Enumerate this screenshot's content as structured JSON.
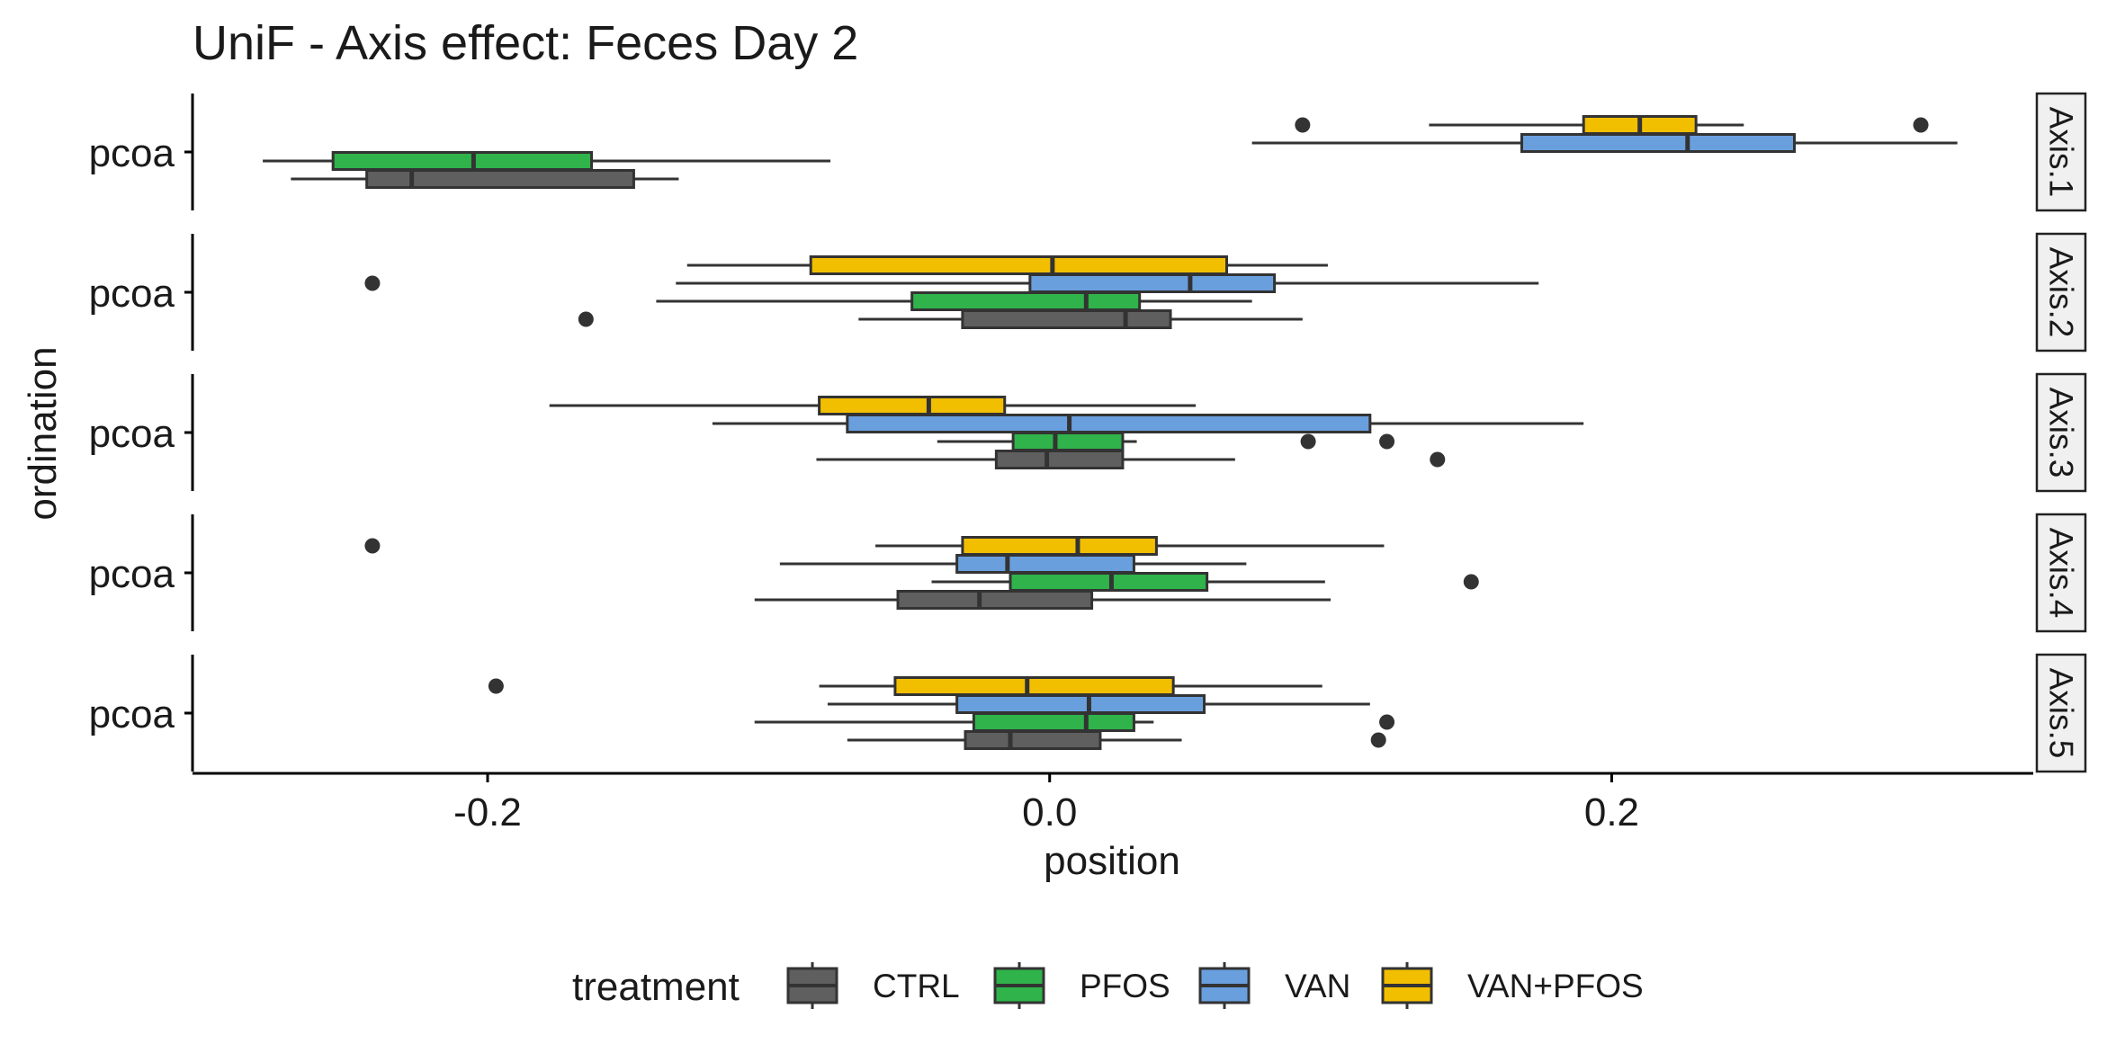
{
  "chart_data": {
    "type": "boxplot",
    "orientation": "horizontal",
    "title": "UniF - Axis effect: Feces Day 2",
    "xlabel": "position",
    "ylabel": "ordination",
    "xlim": [
      -0.305,
      0.35
    ],
    "xticks": [
      {
        "value": -0.2,
        "label": "-0.2"
      },
      {
        "value": 0.0,
        "label": "0.0"
      },
      {
        "value": 0.2,
        "label": "0.2"
      }
    ],
    "grid": false,
    "legend": {
      "title": "treatment",
      "position": "bottom"
    },
    "series": [
      {
        "name": "CTRL",
        "color": "#5f5f5f"
      },
      {
        "name": "PFOS",
        "color": "#2fb34a"
      },
      {
        "name": "VAN",
        "color": "#6a9fde"
      },
      {
        "name": "VAN+PFOS",
        "color": "#f2bf00"
      }
    ],
    "facets": [
      {
        "label": "Axis.1",
        "category": "pcoa",
        "boxes": [
          {
            "group": "CTRL",
            "whislo": -0.27,
            "q1": -0.243,
            "med": -0.227,
            "q3": -0.148,
            "whishi": -0.132,
            "outliers": []
          },
          {
            "group": "PFOS",
            "whislo": -0.28,
            "q1": -0.255,
            "med": -0.205,
            "q3": -0.163,
            "whishi": -0.078,
            "outliers": []
          },
          {
            "group": "VAN",
            "whislo": 0.072,
            "q1": 0.168,
            "med": 0.227,
            "q3": 0.265,
            "whishi": 0.323,
            "outliers": []
          },
          {
            "group": "VAN+PFOS",
            "whislo": 0.135,
            "q1": 0.19,
            "med": 0.21,
            "q3": 0.23,
            "whishi": 0.247,
            "outliers": [
              0.09,
              0.31
            ]
          }
        ]
      },
      {
        "label": "Axis.2",
        "category": "pcoa",
        "boxes": [
          {
            "group": "CTRL",
            "whislo": -0.068,
            "q1": -0.031,
            "med": 0.027,
            "q3": 0.043,
            "whishi": 0.09,
            "outliers": [
              -0.165
            ]
          },
          {
            "group": "PFOS",
            "whislo": -0.14,
            "q1": -0.049,
            "med": 0.013,
            "q3": 0.032,
            "whishi": 0.072,
            "outliers": []
          },
          {
            "group": "VAN",
            "whislo": -0.133,
            "q1": -0.007,
            "med": 0.05,
            "q3": 0.08,
            "whishi": 0.174,
            "outliers": [
              -0.241
            ]
          },
          {
            "group": "VAN+PFOS",
            "whislo": -0.129,
            "q1": -0.085,
            "med": 0.001,
            "q3": 0.063,
            "whishi": 0.099,
            "outliers": []
          }
        ]
      },
      {
        "label": "Axis.3",
        "category": "pcoa",
        "boxes": [
          {
            "group": "CTRL",
            "whislo": -0.083,
            "q1": -0.019,
            "med": -0.001,
            "q3": 0.026,
            "whishi": 0.066,
            "outliers": [
              0.138
            ]
          },
          {
            "group": "PFOS",
            "whislo": -0.04,
            "q1": -0.013,
            "med": 0.002,
            "q3": 0.026,
            "whishi": 0.031,
            "outliers": [
              0.092,
              0.12
            ]
          },
          {
            "group": "VAN",
            "whislo": -0.12,
            "q1": -0.072,
            "med": 0.007,
            "q3": 0.114,
            "whishi": 0.19,
            "outliers": []
          },
          {
            "group": "VAN+PFOS",
            "whislo": -0.178,
            "q1": -0.082,
            "med": -0.043,
            "q3": -0.016,
            "whishi": 0.052,
            "outliers": []
          }
        ]
      },
      {
        "label": "Axis.4",
        "category": "pcoa",
        "boxes": [
          {
            "group": "CTRL",
            "whislo": -0.105,
            "q1": -0.054,
            "med": -0.025,
            "q3": 0.015,
            "whishi": 0.1,
            "outliers": []
          },
          {
            "group": "PFOS",
            "whislo": -0.042,
            "q1": -0.014,
            "med": 0.022,
            "q3": 0.056,
            "whishi": 0.098,
            "outliers": [
              0.15
            ]
          },
          {
            "group": "VAN",
            "whislo": -0.096,
            "q1": -0.033,
            "med": -0.015,
            "q3": 0.03,
            "whishi": 0.07,
            "outliers": []
          },
          {
            "group": "VAN+PFOS",
            "whislo": -0.062,
            "q1": -0.031,
            "med": 0.01,
            "q3": 0.038,
            "whishi": 0.119,
            "outliers": [
              -0.241
            ]
          }
        ]
      },
      {
        "label": "Axis.5",
        "category": "pcoa",
        "boxes": [
          {
            "group": "CTRL",
            "whislo": -0.072,
            "q1": -0.03,
            "med": -0.014,
            "q3": 0.018,
            "whishi": 0.047,
            "outliers": [
              0.117
            ]
          },
          {
            "group": "PFOS",
            "whislo": -0.105,
            "q1": -0.027,
            "med": 0.013,
            "q3": 0.03,
            "whishi": 0.037,
            "outliers": [
              0.12
            ]
          },
          {
            "group": "VAN",
            "whislo": -0.079,
            "q1": -0.033,
            "med": 0.014,
            "q3": 0.055,
            "whishi": 0.114,
            "outliers": []
          },
          {
            "group": "VAN+PFOS",
            "whislo": -0.082,
            "q1": -0.055,
            "med": -0.008,
            "q3": 0.044,
            "whishi": 0.097,
            "outliers": [
              -0.197
            ]
          }
        ]
      }
    ]
  }
}
